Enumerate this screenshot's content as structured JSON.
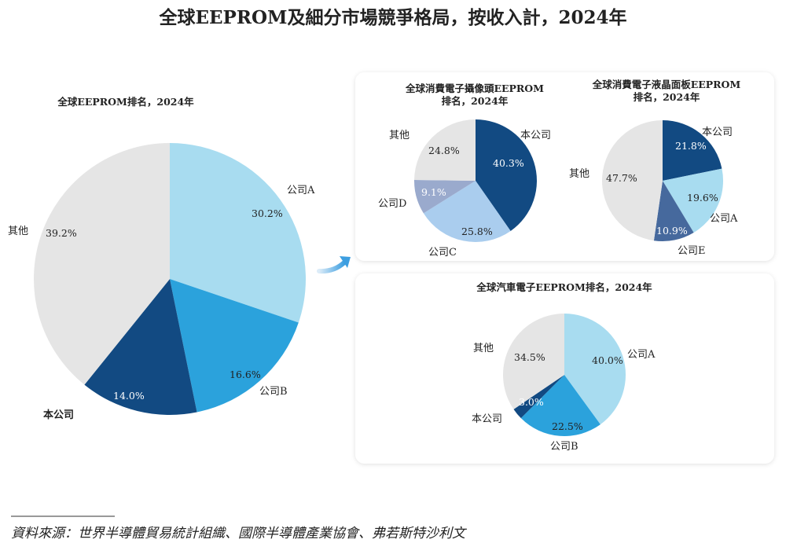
{
  "title": "全球EEPROM及細分市場競爭格局，按收入計，2024年",
  "source": "資料來源：世界半導體貿易統計組織、國際半導體產業協會、弗若斯特沙利文",
  "colors": {
    "light_blue": "#a8dcf0",
    "mid_blue": "#2ba2dc",
    "dark_blue": "#124a82",
    "grey": "#e5e5e5",
    "pale_blue": "#aacdee",
    "lavender": "#9aaacd",
    "slate_blue": "#46699d"
  },
  "chart_data": [
    {
      "type": "pie",
      "title": "全球EEPROM排名，2024年",
      "start": "12 o'clock",
      "direction": "clockwise",
      "slices": [
        {
          "label": "公司A",
          "value": 30.2,
          "pct": "30.2%",
          "color": "#a8dcf0"
        },
        {
          "label": "公司B",
          "value": 16.6,
          "pct": "16.6%",
          "color": "#2ba2dc"
        },
        {
          "label": "本公司",
          "value": 14.0,
          "pct": "14.0%",
          "color": "#124a82"
        },
        {
          "label": "其他",
          "value": 39.2,
          "pct": "39.2%",
          "color": "#e5e5e5"
        }
      ]
    },
    {
      "type": "pie",
      "title_line1": "全球消費電子攝像頭EEPROM",
      "title_line2": "排名，2024年",
      "start": "12 o'clock",
      "direction": "clockwise",
      "slices": [
        {
          "label": "本公司",
          "value": 40.3,
          "pct": "40.3%",
          "color": "#124a82"
        },
        {
          "label": "公司C",
          "value": 25.8,
          "pct": "25.8%",
          "color": "#aacdee"
        },
        {
          "label": "公司D",
          "value": 9.1,
          "pct": "9.1%",
          "color": "#9aaacd"
        },
        {
          "label": "其他",
          "value": 24.8,
          "pct": "24.8%",
          "color": "#e5e5e5"
        }
      ]
    },
    {
      "type": "pie",
      "title_line1": "全球消費電子液晶面板EEPROM",
      "title_line2": "排名，2024年",
      "start": "12 o'clock",
      "direction": "clockwise",
      "slices": [
        {
          "label": "本公司",
          "value": 21.8,
          "pct": "21.8%",
          "color": "#124a82"
        },
        {
          "label": "公司A",
          "value": 19.6,
          "pct": "19.6%",
          "color": "#a8dcf0"
        },
        {
          "label": "公司E",
          "value": 10.9,
          "pct": "10.9%",
          "color": "#46699d"
        },
        {
          "label": "其他",
          "value": 47.7,
          "pct": "47.7%",
          "color": "#e5e5e5"
        }
      ]
    },
    {
      "type": "pie",
      "title": "全球汽車電子EEPROM排名，2024年",
      "start": "12 o'clock",
      "direction": "clockwise",
      "slices": [
        {
          "label": "公司A",
          "value": 40.0,
          "pct": "40.0%",
          "color": "#a8dcf0"
        },
        {
          "label": "公司B",
          "value": 22.5,
          "pct": "22.5%",
          "color": "#2ba2dc"
        },
        {
          "label": "本公司",
          "value": 3.0,
          "pct": "3.0%",
          "color": "#124a82"
        },
        {
          "label": "其他",
          "value": 34.5,
          "pct": "34.5%",
          "color": "#e5e5e5"
        }
      ]
    }
  ]
}
